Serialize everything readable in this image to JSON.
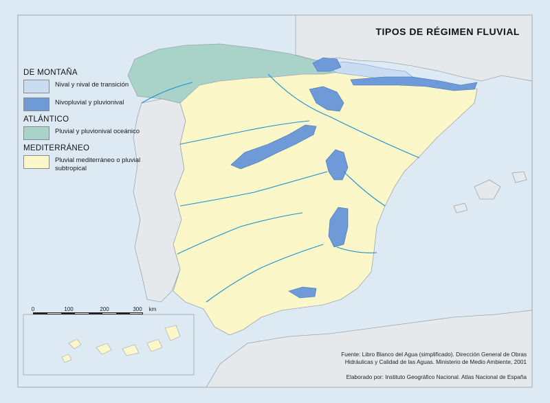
{
  "map": {
    "title": "TIPOS DE RÉGIMEN FLUVIAL",
    "colors": {
      "sea": "#dde9f3",
      "land_other": "#e6e9ec",
      "mediterraneo": "#fbf7c8",
      "atlantico": "#a9d2c8",
      "nival": "#c9dcf2",
      "nivopluvial": "#6e9ad8",
      "river": "#1a8fd0",
      "border": "#8a8a8a"
    },
    "legend": {
      "groups": [
        {
          "heading": "DE MONTAÑA",
          "items": [
            {
              "label": "Nival y nival de transición",
              "color": "#c9dcf2"
            },
            {
              "label": "Nivopluvial y pluvionival",
              "color": "#6e9ad8"
            }
          ]
        },
        {
          "heading": "ATLÁNTICO",
          "items": [
            {
              "label": "Pluvial y pluvionival oceánico",
              "color": "#a9d2c8"
            }
          ]
        },
        {
          "heading": "MEDITERRÁNEO",
          "items": [
            {
              "label": "Pluvial mediterráneo o pluvial subtropical",
              "color": "#fbf7c8"
            }
          ]
        }
      ]
    },
    "scale": {
      "ticks": [
        "0",
        "100",
        "200",
        "300"
      ],
      "unit": "km"
    },
    "source": "Fuente: Libro Blanco del Agua (simplificado). Dirección General de Obras Hidráulicas y Calidad de las Aguas. Ministerio de Medio Ambiente, 2001",
    "credit": "Elaborado por: Instituto Geográfico Nacional. Atlas Nacional de España"
  }
}
